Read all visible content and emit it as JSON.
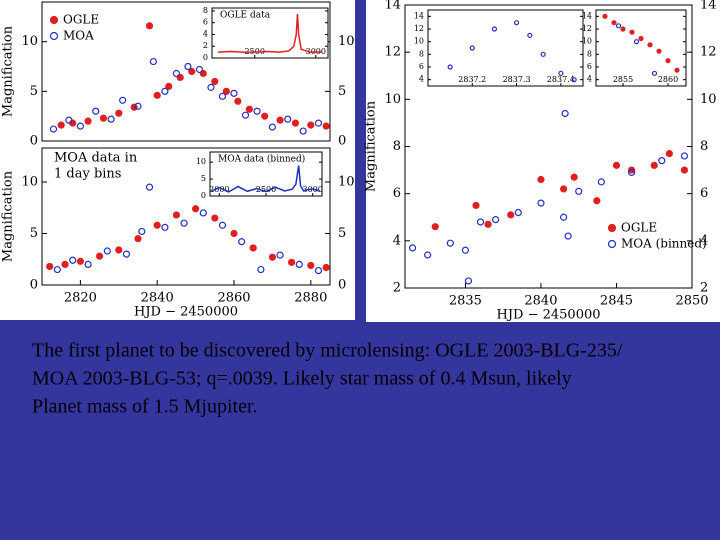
{
  "chart_data": [
    {
      "type": "scatter",
      "ylabel": "Magnification",
      "legend": "upper left",
      "xlim": [
        2810,
        2885
      ],
      "ylim": [
        0,
        14
      ],
      "yticks": [
        0,
        5,
        10
      ],
      "series": [
        {
          "name": "OGLE",
          "color": "#e02020",
          "marker": "filled",
          "x": [
            2815,
            2818,
            2822,
            2826,
            2830,
            2834,
            2838,
            2840,
            2843,
            2846,
            2849,
            2852,
            2855,
            2858,
            2861,
            2864,
            2868,
            2872,
            2876,
            2880,
            2884
          ],
          "values": [
            1.6,
            1.8,
            2.0,
            2.3,
            2.8,
            3.4,
            11.6,
            4.6,
            5.5,
            6.4,
            7.0,
            6.8,
            6.0,
            5.0,
            4.0,
            3.2,
            2.5,
            2.1,
            1.8,
            1.6,
            1.5
          ]
        },
        {
          "name": "MOA",
          "color": "#2030c0",
          "marker": "open",
          "x": [
            2813,
            2817,
            2820,
            2824,
            2828,
            2831,
            2835,
            2839,
            2842,
            2845,
            2848,
            2851,
            2854,
            2857,
            2860,
            2863,
            2866,
            2870,
            2874,
            2878,
            2882
          ],
          "values": [
            1.2,
            2.1,
            1.5,
            3.0,
            2.2,
            4.1,
            3.5,
            8.0,
            5.0,
            6.8,
            7.5,
            7.2,
            5.4,
            4.5,
            4.8,
            2.6,
            3.0,
            1.4,
            2.2,
            1.0,
            1.8
          ]
        }
      ]
    },
    {
      "type": "scatter",
      "ylabel": "Magnification",
      "xlabel": "HJD − 2450000",
      "annotation": [
        "MOA data in",
        "1 day bins"
      ],
      "xlim": [
        2810,
        2885
      ],
      "ylim": [
        0,
        13.3
      ],
      "yticks": [
        0,
        5,
        10
      ],
      "xticks": [
        2820,
        2840,
        2860,
        2880
      ],
      "series": [
        {
          "color": "#e02020",
          "marker": "filled",
          "x": [
            2812,
            2816,
            2820,
            2825,
            2830,
            2835,
            2840,
            2845,
            2850,
            2855,
            2860,
            2865,
            2870,
            2875,
            2880,
            2884
          ],
          "values": [
            1.8,
            2.0,
            2.3,
            2.8,
            3.4,
            4.5,
            5.8,
            6.8,
            7.4,
            6.5,
            5.0,
            3.6,
            2.7,
            2.2,
            1.9,
            1.7
          ]
        },
        {
          "color": "#2030c0",
          "marker": "open",
          "x": [
            2814,
            2818,
            2822,
            2827,
            2832,
            2836,
            2838,
            2842,
            2847,
            2852,
            2857,
            2862,
            2867,
            2872,
            2877,
            2882
          ],
          "values": [
            1.5,
            2.4,
            2.0,
            3.3,
            3.0,
            5.2,
            9.5,
            5.6,
            6.0,
            7.0,
            5.8,
            4.2,
            1.5,
            2.9,
            2.0,
            1.4
          ]
        }
      ]
    },
    {
      "type": "scatter",
      "title": "OGLE data",
      "xlim": [
        2150,
        3100
      ],
      "ylim": [
        0,
        8.5
      ],
      "yticks": [
        0,
        2,
        4,
        6,
        8
      ],
      "xticks": [
        2500,
        3000
      ],
      "series": [
        {
          "color": "#e02020",
          "marker": "line",
          "x": [
            2200,
            2300,
            2400,
            2500,
            2600,
            2700,
            2780,
            2820,
            2840,
            2850,
            2860,
            2880,
            2950,
            3050
          ],
          "values": [
            1,
            1.1,
            1,
            1,
            1.1,
            1,
            1.2,
            2,
            4,
            7.5,
            4,
            1.5,
            1,
            1
          ]
        }
      ]
    },
    {
      "type": "scatter",
      "title": "MOA data (binned)",
      "xlim": [
        1900,
        3100
      ],
      "ylim": [
        0,
        13
      ],
      "yticks": [
        0,
        5,
        10
      ],
      "xticks": [
        2000,
        2500,
        3000
      ],
      "series": [
        {
          "color": "#2030c0",
          "marker": "line",
          "x": [
            1920,
            2000,
            2100,
            2200,
            2300,
            2400,
            2500,
            2600,
            2700,
            2780,
            2820,
            2850,
            2870,
            2900,
            3000,
            3080
          ],
          "values": [
            1.5,
            2.5,
            1.2,
            2.8,
            1.4,
            2.2,
            1.3,
            2.6,
            1.5,
            2.0,
            3.5,
            9.0,
            3.0,
            1.6,
            2.1,
            1.4
          ]
        }
      ]
    },
    {
      "type": "scatter",
      "ylabel": "Magnification",
      "xlabel": "HJD − 2450000",
      "legend": "lower right",
      "xlim": [
        2831,
        2850
      ],
      "ylim": [
        2,
        14
      ],
      "yticks": [
        2,
        4,
        6,
        8,
        10,
        12,
        14
      ],
      "xticks": [
        2835,
        2840,
        2845,
        2850
      ],
      "series": [
        {
          "name": "OGLE",
          "color": "#e02020",
          "marker": "filled",
          "x": [
            2833,
            2835.7,
            2836.5,
            2838,
            2840,
            2841.5,
            2842.2,
            2843.7,
            2845,
            2846,
            2847.5,
            2848.5,
            2849.5
          ],
          "values": [
            4.6,
            5.5,
            4.7,
            5.1,
            6.6,
            6.2,
            6.7,
            5.7,
            7.2,
            7.0,
            7.2,
            7.7,
            7.0
          ]
        },
        {
          "name": "MOA (binned)",
          "color": "#2030c0",
          "marker": "open",
          "x": [
            2831.5,
            2832.5,
            2834,
            2835,
            2835.2,
            2836,
            2837,
            2838.5,
            2840,
            2841.5,
            2841.6,
            2841.8,
            2842.5,
            2844,
            2846,
            2848,
            2849.5
          ],
          "values": [
            3.7,
            3.4,
            3.9,
            3.6,
            2.3,
            4.8,
            4.9,
            5.2,
            5.6,
            5.0,
            9.4,
            4.2,
            6.1,
            6.5,
            6.9,
            7.4,
            7.6
          ]
        }
      ]
    },
    {
      "type": "scatter",
      "xlim": [
        2837.1,
        2837.45
      ],
      "ylim": [
        3,
        15
      ],
      "yticks": [
        4,
        6,
        8,
        10,
        12,
        14
      ],
      "xticks": [
        2837.2,
        2837.3,
        2837.4
      ],
      "series": [
        {
          "color": "#2030c0",
          "marker": "open",
          "x": [
            2837.15,
            2837.2,
            2837.25,
            2837.3,
            2837.33,
            2837.36,
            2837.4,
            2837.43
          ],
          "values": [
            6,
            9,
            12,
            13,
            11,
            8,
            5,
            4
          ]
        }
      ]
    },
    {
      "type": "scatter",
      "xlim": [
        2852,
        2862
      ],
      "ylim": [
        3,
        15
      ],
      "yticks": [
        4,
        6,
        8,
        10,
        12,
        14
      ],
      "xticks": [
        2855,
        2860
      ],
      "series": [
        {
          "color": "#e02020",
          "marker": "filled",
          "x": [
            2853,
            2854,
            2855,
            2856,
            2857,
            2858,
            2859,
            2860,
            2861
          ],
          "values": [
            14,
            13,
            12,
            11.5,
            10.5,
            9.5,
            8.5,
            7,
            5.5
          ]
        },
        {
          "color": "#2030c0",
          "marker": "open",
          "x": [
            2854.5,
            2856.5,
            2858.5
          ],
          "values": [
            12.5,
            10,
            5
          ]
        }
      ]
    }
  ],
  "caption": [
    "The first planet to be discovered by microlensing: OGLE 2003-BLG-235/",
    "MOA 2003-BLG-53;  q=.0039.  Likely star mass of 0.4 Msun, likely",
    "Planet mass of 1.5 Mjupiter."
  ]
}
